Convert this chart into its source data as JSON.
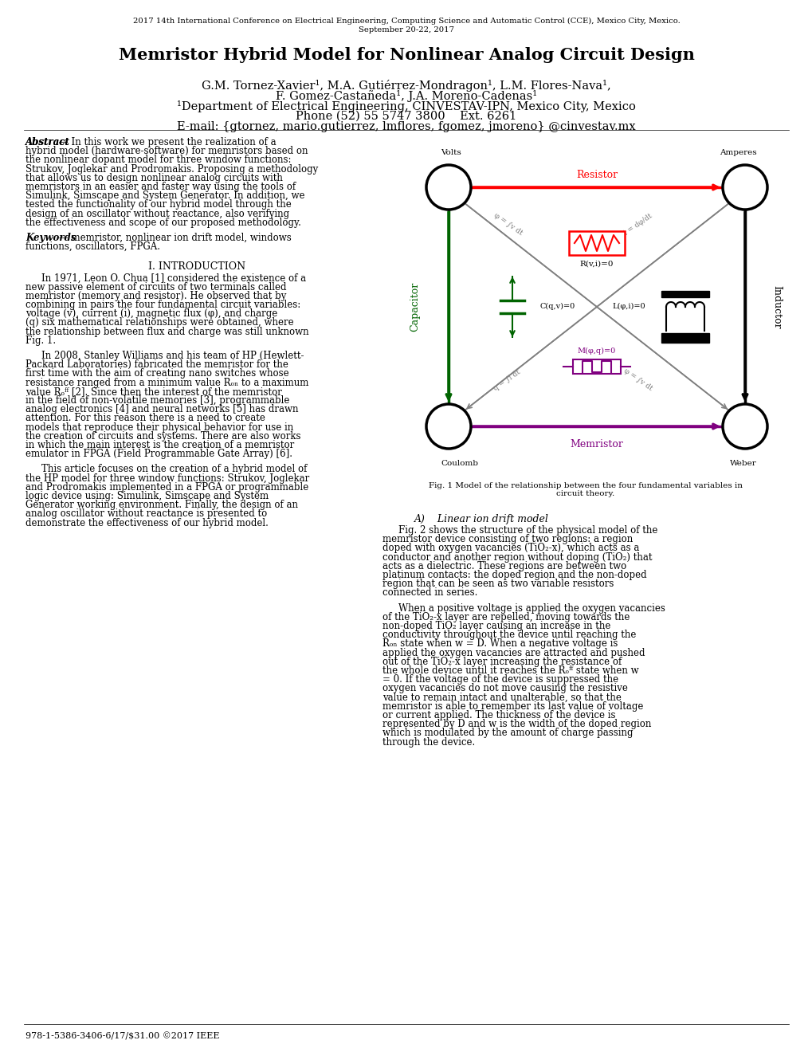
{
  "conference_line1": "2017 14th International Conference on Electrical Engineering, Computing Science and Automatic Control (CCE), Mexico City, Mexico.",
  "conference_line2": "September 20-22, 2017",
  "title": "Memristor Hybrid Model for Nonlinear Analog Circuit Design",
  "authors_line1": "G.M. Tornez-Xavier¹, M.A. Gutiérrez-Mondragon¹, L.M. Flores-Nava¹,",
  "authors_line2": "F. Gomez-Castañeda¹, J.A. Moreno-Cadenas¹",
  "affiliation": "¹Department of Electrical Engineering, CINVESTAV-IPN, Mexico City, Mexico",
  "phone": "Phone (52) 55 5747 3800    Ext. 6261",
  "email": "E-mail: {gtornez, mario.gutierrez, lmflores, fgomez, jmoreno} @cinvestav.mx",
  "abstract_title": "Abstract",
  "abstract_body": "— In this work we present the realization of a hybrid model (hardware-software) for memristors based on the nonlinear dopant model for three window functions: Strukov, Joglekar and Prodromakis. Proposing a methodology that allows us to design nonlinear analog circuits with memristors in an easier and faster way using the tools of Simulink, Simscape and System Generator. In addition, we tested the functionality of our hybrid model through the design of an oscillator without reactance, also verifying the effectiveness and scope of our proposed methodology.",
  "keywords_title": "Keywords",
  "keywords_body": "— memristor, nonlinear ion drift model, windows functions, oscillators, FPGA.",
  "section1_title": "I. INTRODUCTION",
  "intro_para1": "In 1971, Leon O. Chua [1] considered the existence of a new passive element of circuits of two terminals called memristor (memory and resistor). He observed that by combining in pairs the four fundamental circuit variables: voltage (v), current (i), magnetic flux (φ), and charge (q) six mathematical relationships were obtained, where the relationship between flux and charge was still unknown Fig. 1.",
  "intro_para2": "In 2008, Stanley Williams and his team of HP (Hewlett-Packard Laboratories) fabricated the memristor for the first time with the aim of creating nano switches whose resistance ranged from a minimum value Rₒₙ to a maximum value Rₒᶠᶠ [2]. Since then the interest of the memristor in the field of non-volatile memories [3], programmable analog electronics [4] and neural networks [5] has drawn attention. For this reason there is a need to create models that reproduce their physical behavior for use in the creation of circuits and systems. There are also works in which the main interest is the creation of a memristor emulator in FPGA (Field Programmable Gate Array) [6].",
  "intro_para3": "This article focuses on the creation of a hybrid model of the HP model for three window functions: Strukov, Joglekar and Prodromakis implemented in a FPGA or programmable logic device using: Simulink, Simscape and System Generator working environment. Finally, the design of an analog oscillator without reactance is presented to demonstrate the effectiveness of our hybrid model.",
  "sectionA_title": "A)    Linear ion drift model",
  "sectionA_para1": "Fig. 2 shows the structure of the physical model of the memristor device consisting of two regions: a region doped with oxygen vacancies (TiO₂-x), which acts as a conductor and another region without doping (TiO₂) that acts as a dielectric. These regions are between two platinum contacts: the doped region and the non-doped region that can be seen as two variable resistors connected in series.",
  "sectionA_para2": "When a positive voltage is applied the oxygen vacancies of the TiO₂-x layer are repelled, moving towards the non-doped TiO₂ layer causing an increase in the conductivity throughout the device until reaching the Rₒₙ state when w = D. When a negative voltage is applied the oxygen vacancies are attracted and pushed out of the TiO₂-x layer increasing the resistance of the whole device until it reaches the Rₒᶠᶠ state when w = 0. If the voltage of the device is suppressed the oxygen vacancies do not move causing the resistive value to remain intact and unalterable, so that the memristor is able to remember its last value of voltage or current applied. The thickness of the device is represented by D and w is the width of the doped region which is modulated by the amount of charge passing through the device.",
  "fig1_caption": "Fig. 1 Model of the relationship between the four fundamental variables in\ncircuit theory.",
  "footer": "978-1-5386-3406-6/17/$31.00 ©2017 IEEE",
  "bg_color": "#ffffff",
  "text_color": "#000000"
}
